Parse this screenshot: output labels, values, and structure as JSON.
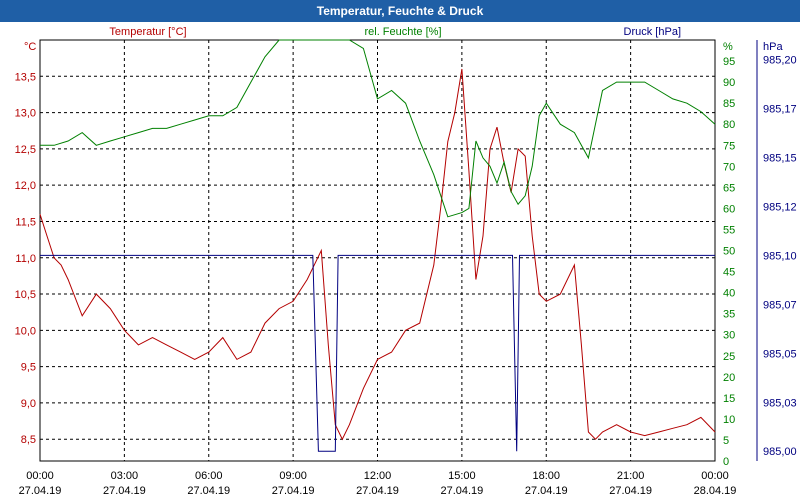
{
  "chart_data": {
    "type": "line",
    "title": "Temperatur, Feuchte & Druck",
    "grid": true,
    "x": {
      "tick_times": [
        "00:00",
        "03:00",
        "06:00",
        "09:00",
        "12:00",
        "15:00",
        "18:00",
        "21:00",
        "00:00"
      ],
      "tick_dates": [
        "27.04.19",
        "27.04.19",
        "27.04.19",
        "27.04.19",
        "27.04.19",
        "27.04.19",
        "27.04.19",
        "27.04.19",
        "28.04.19"
      ],
      "range_hours": [
        0,
        24
      ]
    },
    "axes": {
      "temperature": {
        "label": "Temperatur [°C]",
        "unit": "°C",
        "range": [
          8.2,
          14.0
        ],
        "ticks": [
          "13,5",
          "13,0",
          "12,5",
          "12,0",
          "11,5",
          "11,0",
          "10,5",
          "10,0",
          "9,5",
          "9,0",
          "8,5"
        ],
        "tick_values": [
          13.5,
          13.0,
          12.5,
          12.0,
          11.5,
          11.0,
          10.5,
          10.0,
          9.5,
          9.0,
          8.5
        ],
        "color": "#b40000"
      },
      "humidity": {
        "label": "rel. Feuchte [%]",
        "unit": "%",
        "range": [
          0,
          100
        ],
        "ticks": [
          "95",
          "90",
          "85",
          "80",
          "75",
          "70",
          "65",
          "60",
          "55",
          "50",
          "45",
          "40",
          "35",
          "30",
          "25",
          "20",
          "15",
          "10",
          "5",
          "0"
        ],
        "tick_values": [
          95,
          90,
          85,
          80,
          75,
          70,
          65,
          60,
          55,
          50,
          45,
          40,
          35,
          30,
          25,
          20,
          15,
          10,
          5,
          0
        ],
        "color": "#008000"
      },
      "pressure": {
        "label": "Druck [hPa]",
        "unit": "hPa",
        "range": [
          984.995,
          985.21
        ],
        "ticks": [
          "985,20",
          "985,17",
          "985,15",
          "985,12",
          "985,10",
          "985,07",
          "985,05",
          "985,03",
          "985,00"
        ],
        "tick_values": [
          985.2,
          985.175,
          985.15,
          985.125,
          985.1,
          985.075,
          985.05,
          985.025,
          985.0
        ],
        "color": "#000080"
      }
    },
    "series": [
      {
        "name": "Temperatur [°C]",
        "axis": "temperature",
        "color": "#b40000",
        "x": [
          0,
          0.25,
          0.5,
          0.75,
          1,
          1.5,
          2,
          2.5,
          3,
          3.5,
          4,
          4.5,
          5,
          5.5,
          6,
          6.5,
          7,
          7.5,
          8,
          8.5,
          9,
          9.5,
          10,
          10.25,
          10.5,
          10.75,
          11,
          11.5,
          12,
          12.5,
          13,
          13.5,
          14,
          14.25,
          14.5,
          14.75,
          15,
          15.25,
          15.5,
          15.75,
          16,
          16.25,
          16.5,
          16.75,
          17,
          17.25,
          17.5,
          17.75,
          18,
          18.5,
          19,
          19.25,
          19.5,
          19.75,
          20,
          20.5,
          21,
          21.5,
          22,
          22.5,
          23,
          23.5,
          24
        ],
        "y": [
          11.6,
          11.3,
          11.0,
          10.9,
          10.7,
          10.2,
          10.5,
          10.3,
          10.0,
          9.8,
          9.9,
          9.8,
          9.7,
          9.6,
          9.7,
          9.9,
          9.6,
          9.7,
          10.1,
          10.3,
          10.4,
          10.7,
          11.1,
          9.8,
          8.7,
          8.5,
          8.7,
          9.2,
          9.6,
          9.7,
          10.0,
          10.1,
          10.9,
          11.7,
          12.6,
          13.0,
          13.6,
          12.2,
          10.7,
          11.3,
          12.5,
          12.8,
          12.3,
          11.9,
          12.5,
          12.4,
          11.3,
          10.5,
          10.4,
          10.5,
          10.9,
          9.8,
          8.6,
          8.5,
          8.6,
          8.7,
          8.6,
          8.55,
          8.6,
          8.65,
          8.7,
          8.8,
          8.6
        ]
      },
      {
        "name": "rel. Feuchte [%]",
        "axis": "humidity",
        "color": "#008000",
        "x": [
          0,
          0.5,
          1,
          1.5,
          2,
          2.5,
          3,
          3.5,
          4,
          4.5,
          5,
          5.5,
          6,
          6.5,
          7,
          7.5,
          8,
          8.5,
          9,
          9.5,
          10,
          10.5,
          11,
          11.5,
          12,
          12.5,
          13,
          13.5,
          14,
          14.5,
          15,
          15.25,
          15.5,
          15.75,
          16,
          16.25,
          16.5,
          16.75,
          17,
          17.25,
          17.5,
          17.75,
          18,
          18.5,
          19,
          19.5,
          20,
          20.5,
          21,
          21.5,
          22,
          22.5,
          23,
          23.5,
          24
        ],
        "y": [
          75,
          75,
          76,
          78,
          75,
          76,
          77,
          78,
          79,
          79,
          80,
          81,
          82,
          82,
          84,
          90,
          96,
          100,
          100,
          100,
          100,
          100,
          100,
          98,
          86,
          88,
          85,
          76,
          68,
          58,
          59,
          60,
          76,
          72,
          70,
          66,
          71,
          64,
          61,
          63,
          70,
          82,
          85,
          80,
          78,
          72,
          88,
          90,
          90,
          90,
          88,
          86,
          85,
          83,
          80
        ]
      },
      {
        "name": "Druck [hPa]",
        "axis": "pressure",
        "color": "#000080",
        "x": [
          0,
          9.7,
          9.9,
          10.5,
          10.6,
          10.8,
          12,
          15,
          16.8,
          16.95,
          17.05,
          17.2,
          24
        ],
        "y": [
          985.1,
          985.1,
          985.0,
          985.0,
          985.1,
          985.1,
          985.1,
          985.1,
          985.1,
          985.0,
          985.1,
          985.1,
          985.1
        ]
      }
    ]
  }
}
